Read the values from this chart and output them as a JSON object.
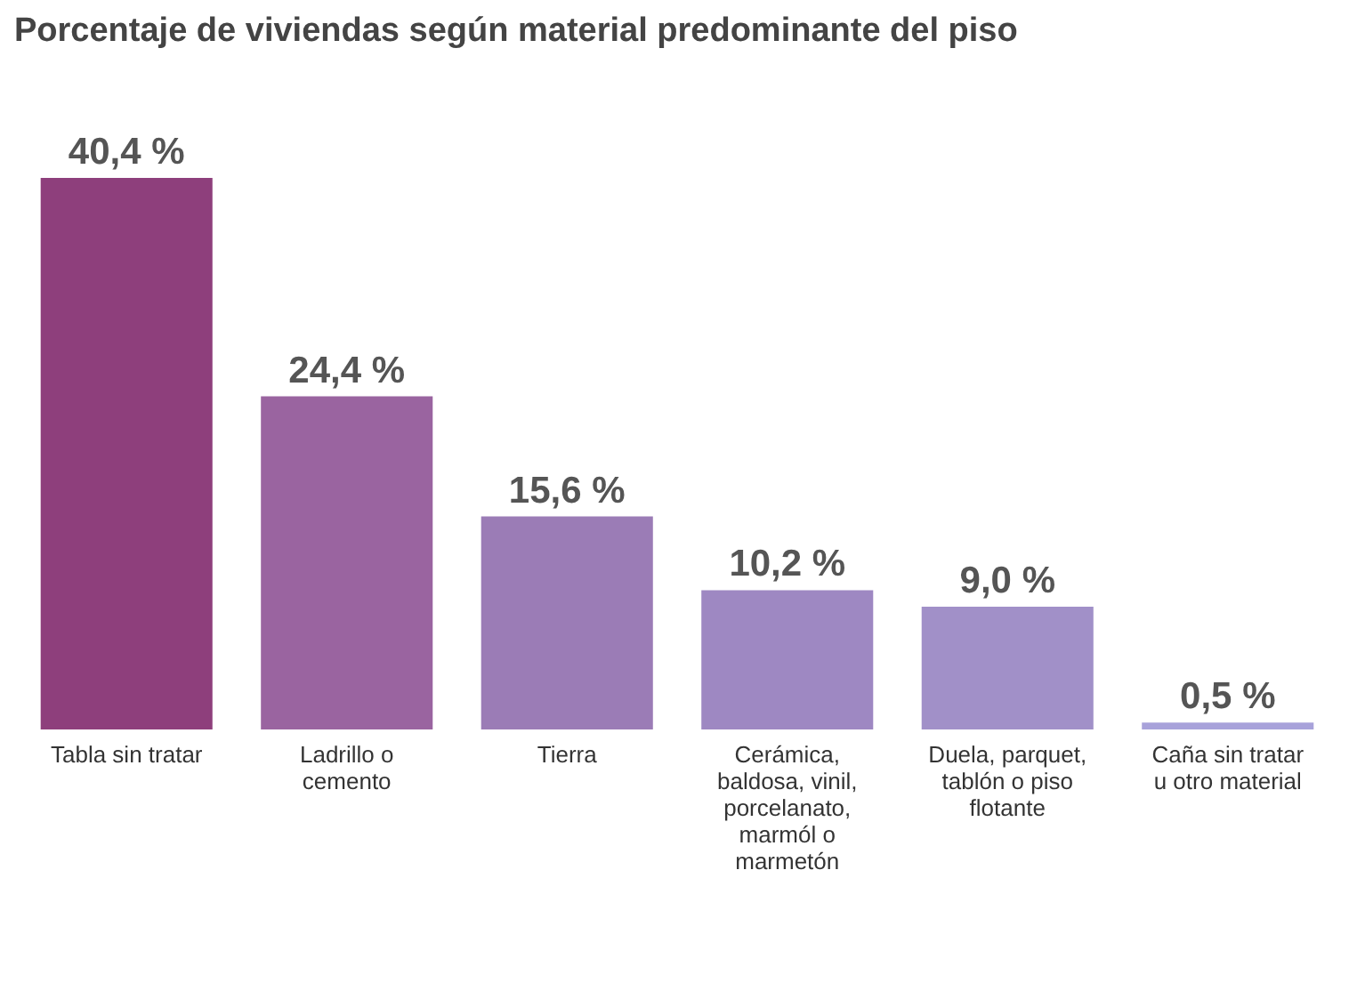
{
  "chart_data": {
    "type": "bar",
    "title": "Porcentaje de viviendas según material predominante del piso",
    "categories": [
      "Tabla sin tratar",
      "Ladrillo o cemento",
      "Tierra",
      "Cerámica, baldosa, vinil, porcelanato, marmól o marmetón",
      "Duela, parquet, tablón o piso flotante",
      "Caña sin tratar u otro material"
    ],
    "values": [
      40.4,
      24.4,
      15.6,
      10.2,
      9.0,
      0.5
    ],
    "value_labels": [
      "40,4 %",
      "24,4 %",
      "15,6 %",
      "10,2 %",
      "9,0 %",
      "0,5 %"
    ],
    "colors": [
      "#8e3f7c",
      "#9a64a0",
      "#9b7cb6",
      "#9e88c2",
      "#a190c8",
      "#a8a2da"
    ],
    "grid": false
  }
}
